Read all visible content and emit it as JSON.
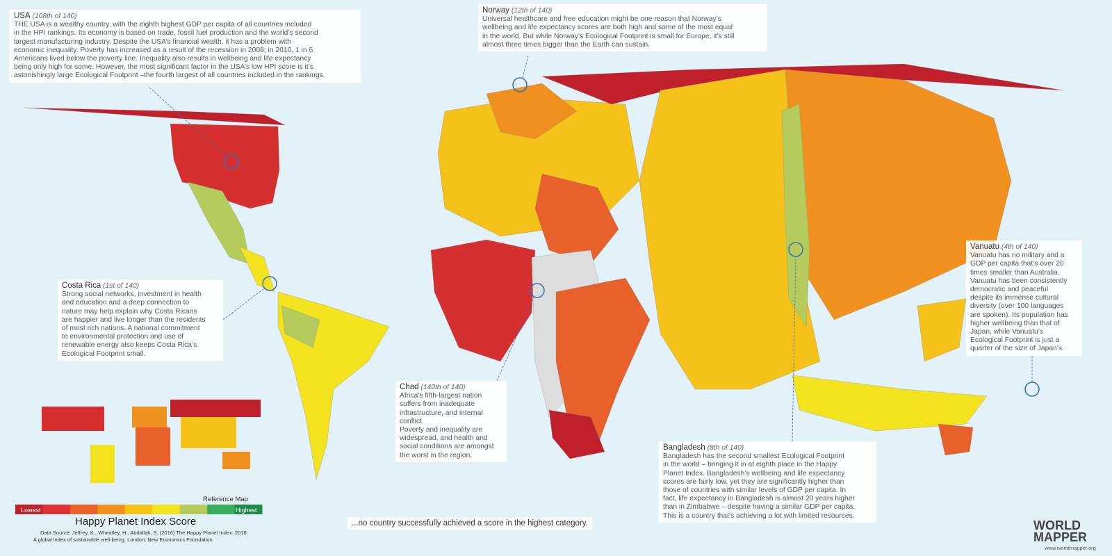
{
  "annotations": [
    {
      "name": "USA",
      "rank": "(108th of 140)",
      "lines": [
        "THE USA is a wealthy country, with the eighth highest GDP per capita of all countries included",
        "in the HPI rankings. Its economy is based on trade, fossil fuel production and the world’s second",
        "largest manufacturing industry. Despite the USA’s financial wealth, it has a problem with",
        "economic inequality. Poverty has increased as a result of the recession in 2008; in 2010, 1 in 6",
        "Americans lived below the poverty line. Inequality also results in wellbeing and life expectancy",
        "being only high for some. However, the most significant factor in the USA’s low HPI score is it’s",
        "astonishingly large Ecological Footprint –the fourth largest of all countries included in the rankings."
      ]
    },
    {
      "name": "Norway",
      "rank": "(12th of 140)",
      "lines": [
        "Universal healthcare and free education might be one reason that Norway’s",
        "wellbeing and life expectancy scores are both high and some of the most equal",
        "in the world.  But while Norway’s Ecological Footprint is small for Europe, it’s still",
        "almost three times bigger than the Earth can sustain."
      ]
    },
    {
      "name": "Costa Rica",
      "rank": "(1st of 140)",
      "lines": [
        "Strong social networks, investment in health",
        "and education and a deep connection to",
        "nature may help explain why Costa Ricans",
        "are happier and live longer than the residents",
        "of most rich nations. A national commitment",
        "to environmental protection and use of",
        "renewable energy also keeps Costa Rica’s",
        "Ecological Footprint small."
      ]
    },
    {
      "name": "Chad",
      "rank": "(140th of 140)",
      "lines": [
        "Africa’s fifth-largest nation",
        "suffers from inadequate",
        "infrastructure, and internal",
        "conflict.",
        "Poverty and inequality are",
        "widespread, and health and",
        "social conditions are amongst",
        "the worst in the region."
      ]
    },
    {
      "name": "Bangladesh",
      "rank": "(8th of 140)",
      "lines": [
        "Bangladesh has the second smallest Ecological Footprint",
        "in the world – bringing it in at eighth place in the Happy",
        "Planet Index. Bangladesh’s wellbeing and life expectancy",
        "scores are fairly low, yet they are significantly higher than",
        "those of countries with similar levels of GDP per capita. In",
        "fact, life expectancy in Bangladesh is almost 20 years higher",
        "than in Zimbabwe – despite having a similar GDP per capita.",
        "This is a country that’s achieving a lot with limited resources."
      ]
    },
    {
      "name": "Vanuatu",
      "rank": "(4th of 140)",
      "lines": [
        "Vanuatu has no military and a",
        "GDP per capita that’s over 20",
        "times smaller than Australia.",
        "Vanuatu has been consistently",
        "democratic and peaceful",
        "despite its immense cultural",
        "diversity (over 100 languages",
        "are spoken). Its population has",
        "higher wellbeing than that of",
        "Japan, while Vanuatu’s",
        "Ecological Footprint is just a",
        "quarter of the size of Japan’s."
      ]
    }
  ],
  "legend": {
    "title": "Happy Planet Index Score",
    "low": "Lowest",
    "high": "Highest",
    "reference": "Reference Map",
    "colors": [
      "#c0202c",
      "#d93535",
      "#e8602a",
      "#f0901e",
      "#f5c21a",
      "#f3e21e",
      "#b5cc5c",
      "#3aae5c",
      "#1f8a45"
    ],
    "source": [
      "Data Source:  Jeffrey, K., Wheatley, H., Abdallah, S. (2016)  The Happy Planet Index: 2016.",
      "A global index of sustainable well-being. London: New Economics Foundation."
    ]
  },
  "footer": "...no country successfully achieved a score in the highest category.",
  "logo": {
    "line1": "WORLD",
    "line2": "MAPPER",
    "url": "www.worldmapper.org"
  }
}
